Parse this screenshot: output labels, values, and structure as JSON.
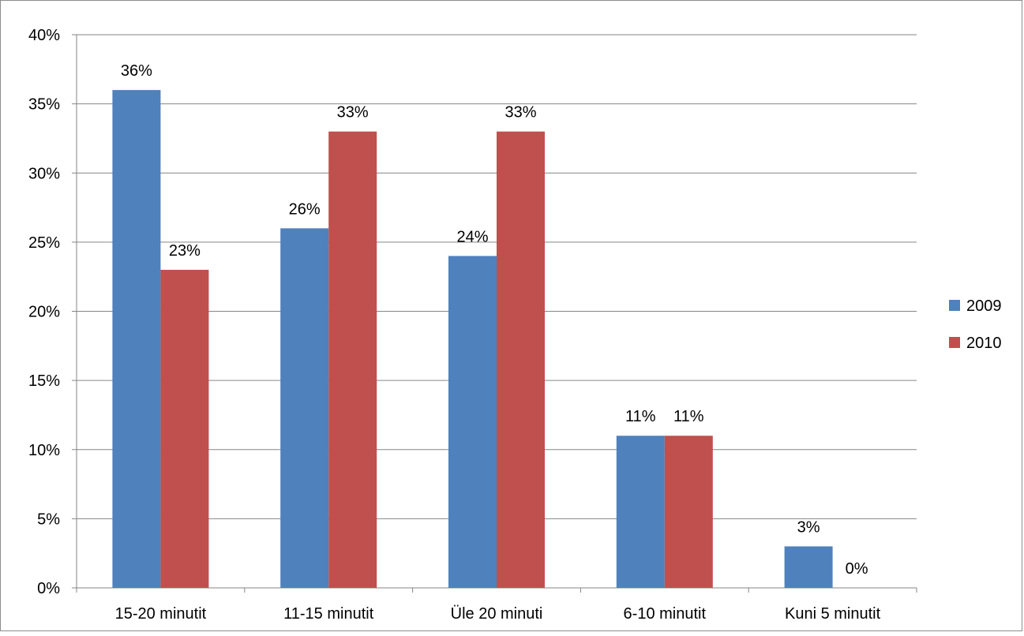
{
  "chart_data": {
    "type": "bar",
    "title": "",
    "xlabel": "",
    "ylabel": "",
    "categories": [
      "15-20 minutit",
      "11-15 minutit",
      "Üle 20 minuti",
      "6-10 minutit",
      "Kuni 5 minutit"
    ],
    "series": [
      {
        "name": "2009",
        "color": "#4F81BD",
        "values": [
          36,
          26,
          24,
          11,
          3
        ],
        "labels": [
          "36%",
          "26%",
          "24%",
          "11%",
          "3%"
        ]
      },
      {
        "name": "2010",
        "color": "#C0504D",
        "values": [
          23,
          33,
          33,
          11,
          0
        ],
        "labels": [
          "23%",
          "33%",
          "33%",
          "11%",
          "0%"
        ]
      }
    ],
    "ylim": [
      0,
      40
    ],
    "yticks": [
      0,
      5,
      10,
      15,
      20,
      25,
      30,
      35,
      40
    ],
    "ytick_labels": [
      "0%",
      "5%",
      "10%",
      "15%",
      "20%",
      "25%",
      "30%",
      "35%",
      "40%"
    ],
    "grid": true,
    "legend_position": "right"
  }
}
